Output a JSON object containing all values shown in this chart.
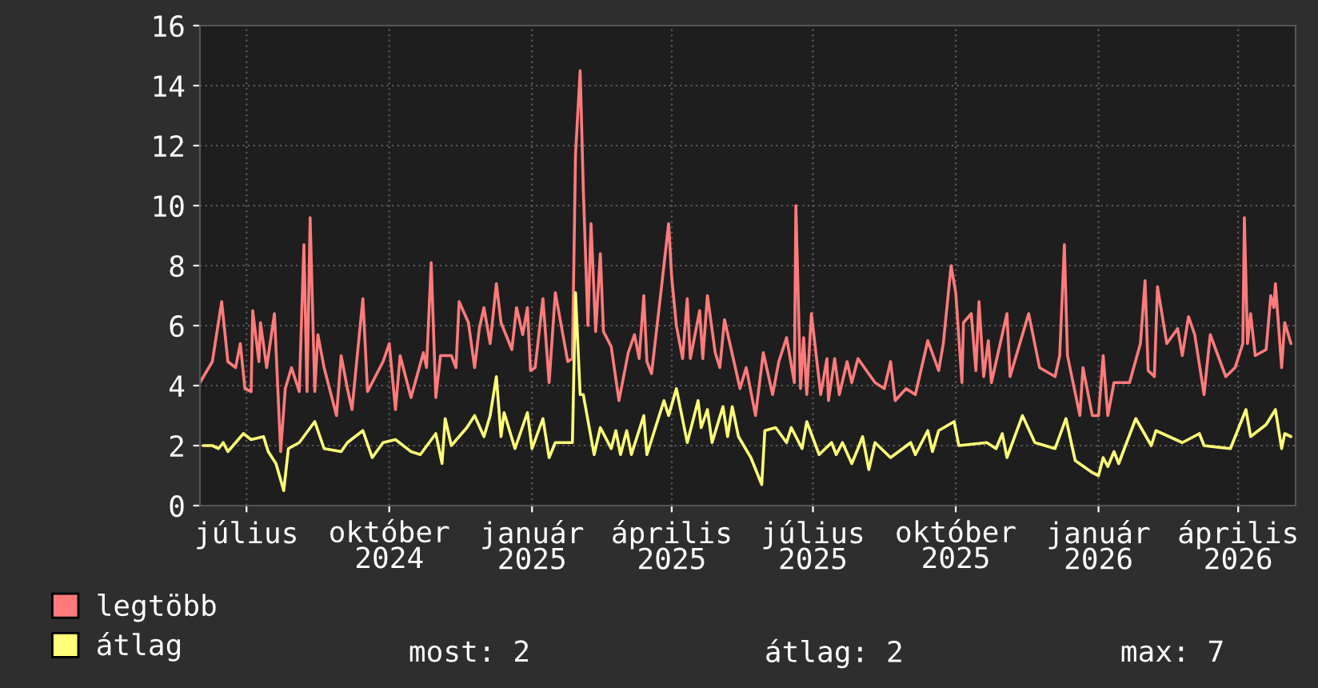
{
  "chart_data": {
    "type": "line",
    "xlim": [
      "2024-06-01",
      "2026-05-08"
    ],
    "xticks": [
      {
        "value": "2024-07-01",
        "label": "július"
      },
      {
        "value": "2024-10-01",
        "label": "október\n2024"
      },
      {
        "value": "2025-01-01",
        "label": "január\n2025"
      },
      {
        "value": "2025-04-01",
        "label": "április\n2025"
      },
      {
        "value": "2025-07-01",
        "label": "július\n2025"
      },
      {
        "value": "2025-10-01",
        "label": "október\n2025"
      },
      {
        "value": "2026-01-01",
        "label": "január\n2026"
      },
      {
        "value": "2026-04-01",
        "label": "április\n2026"
      }
    ],
    "ylim": [
      0,
      16
    ],
    "yticks": [
      0,
      2,
      4,
      6,
      8,
      10,
      12,
      14,
      16
    ],
    "grid": true,
    "legend": "bottom left",
    "annotations": [
      "most: 2",
      "átlag: 2",
      "max: 7"
    ],
    "series": [
      {
        "name": "legtöbb",
        "color": "#ff7b7b",
        "x": [
          "2024-06-01",
          "2024-06-09",
          "2024-06-15",
          "2024-06-19",
          "2024-06-24",
          "2024-06-27",
          "2024-06-30",
          "2024-07-04",
          "2024-07-05",
          "2024-07-09",
          "2024-07-10",
          "2024-07-14",
          "2024-07-19",
          "2024-07-23",
          "2024-07-26",
          "2024-07-30",
          "2024-08-04",
          "2024-08-07",
          "2024-08-09",
          "2024-08-11",
          "2024-08-14",
          "2024-08-16",
          "2024-08-20",
          "2024-08-28",
          "2024-08-31",
          "2024-09-04",
          "2024-09-07",
          "2024-09-10",
          "2024-09-14",
          "2024-09-17",
          "2024-09-27",
          "2024-10-01",
          "2024-10-05",
          "2024-10-08",
          "2024-10-15",
          "2024-10-23",
          "2024-10-25",
          "2024-10-28",
          "2024-10-31",
          "2024-11-03",
          "2024-11-10",
          "2024-11-13",
          "2024-11-15",
          "2024-11-21",
          "2024-11-25",
          "2024-11-28",
          "2024-12-01",
          "2024-12-05",
          "2024-12-09",
          "2024-12-12",
          "2024-12-19",
          "2024-12-22",
          "2024-12-26",
          "2024-12-29",
          "2024-12-31",
          "2025-01-03",
          "2025-01-08",
          "2025-01-12",
          "2025-01-16",
          "2025-01-24",
          "2025-01-27",
          "2025-01-29",
          "2025-02-01",
          "2025-02-03",
          "2025-02-06",
          "2025-02-08",
          "2025-02-11",
          "2025-02-14",
          "2025-02-16",
          "2025-02-21",
          "2025-02-26",
          "2025-03-04",
          "2025-03-08",
          "2025-03-11",
          "2025-03-14",
          "2025-03-16",
          "2025-03-19",
          "2025-03-25",
          "2025-03-30",
          "2025-04-01",
          "2025-04-04",
          "2025-04-08",
          "2025-04-11",
          "2025-04-13",
          "2025-04-19",
          "2025-04-21",
          "2025-04-24",
          "2025-04-29",
          "2025-05-02",
          "2025-05-05",
          "2025-05-15",
          "2025-05-19",
          "2025-05-25",
          "2025-05-30",
          "2025-06-05",
          "2025-06-09",
          "2025-06-14",
          "2025-06-19",
          "2025-06-20",
          "2025-06-23",
          "2025-06-25",
          "2025-06-27",
          "2025-06-30",
          "2025-07-06",
          "2025-07-10",
          "2025-07-11",
          "2025-07-15",
          "2025-07-18",
          "2025-07-23",
          "2025-07-26",
          "2025-07-30",
          "2025-08-10",
          "2025-08-16",
          "2025-08-20",
          "2025-08-23",
          "2025-08-30",
          "2025-09-05",
          "2025-09-13",
          "2025-09-20",
          "2025-09-23",
          "2025-09-28",
          "2025-10-01",
          "2025-10-05",
          "2025-10-06",
          "2025-10-11",
          "2025-10-14",
          "2025-10-16",
          "2025-10-19",
          "2025-10-22",
          "2025-10-24",
          "2025-11-03",
          "2025-11-05",
          "2025-11-17",
          "2025-11-24",
          "2025-12-04",
          "2025-12-07",
          "2025-12-10",
          "2025-12-12",
          "2025-12-20",
          "2025-12-22",
          "2025-12-28",
          "2026-01-01",
          "2026-01-04",
          "2026-01-07",
          "2026-01-11",
          "2026-01-21",
          "2026-01-28",
          "2026-01-31",
          "2026-02-02",
          "2026-02-06",
          "2026-02-08",
          "2026-02-14",
          "2026-02-21",
          "2026-02-24",
          "2026-02-28",
          "2026-03-04",
          "2026-03-10",
          "2026-03-14",
          "2026-03-24",
          "2026-03-30",
          "2026-04-04",
          "2026-04-05",
          "2026-04-07",
          "2026-04-09",
          "2026-04-12",
          "2026-04-19",
          "2026-04-22",
          "2026-04-24",
          "2026-04-25",
          "2026-04-29",
          "2026-05-01",
          "2026-05-05"
        ],
        "values": [
          4.1,
          4.8,
          6.8,
          4.8,
          4.6,
          5.4,
          3.9,
          3.8,
          6.5,
          4.8,
          6.1,
          4.6,
          6.4,
          1.8,
          3.9,
          4.6,
          3.8,
          8.7,
          3.8,
          9.6,
          3.8,
          5.7,
          4.6,
          3.0,
          5.0,
          3.9,
          3.2,
          4.8,
          6.9,
          3.8,
          4.8,
          5.4,
          3.2,
          5.0,
          3.6,
          5.1,
          4.6,
          8.1,
          3.6,
          5.0,
          5.0,
          4.6,
          6.8,
          6.1,
          4.6,
          5.9,
          6.6,
          5.4,
          7.4,
          6.1,
          5.2,
          6.6,
          5.7,
          6.6,
          4.5,
          4.6,
          6.9,
          4.1,
          7.1,
          4.8,
          4.9,
          11.7,
          14.5,
          10.6,
          6.0,
          9.4,
          5.8,
          8.4,
          5.8,
          5.3,
          3.5,
          5.1,
          5.7,
          4.9,
          7.0,
          4.8,
          4.4,
          7.1,
          9.4,
          7.6,
          6.0,
          4.9,
          6.9,
          4.9,
          6.5,
          4.9,
          7.0,
          5.1,
          4.6,
          6.2,
          3.9,
          4.6,
          3.0,
          5.1,
          3.7,
          4.8,
          5.6,
          4.1,
          10.0,
          3.9,
          5.6,
          3.7,
          6.4,
          3.7,
          4.9,
          3.5,
          4.9,
          3.7,
          4.8,
          4.1,
          4.9,
          4.1,
          3.9,
          4.8,
          3.5,
          3.9,
          3.7,
          5.5,
          4.5,
          5.4,
          8.0,
          7.1,
          4.1,
          6.1,
          6.4,
          4.5,
          6.8,
          4.3,
          5.5,
          4.1,
          6.4,
          4.3,
          6.4,
          4.6,
          4.3,
          5.0,
          8.7,
          5.0,
          3.0,
          4.6,
          3.0,
          3.0,
          5.0,
          3.0,
          4.1,
          4.1,
          5.4,
          7.5,
          4.5,
          4.3,
          7.3,
          5.4,
          5.9,
          5.0,
          6.3,
          5.7,
          3.7,
          5.7,
          4.3,
          4.6,
          5.4,
          9.6,
          5.4,
          6.4,
          5.0,
          5.2,
          7.0,
          6.6,
          7.4,
          4.6,
          6.1,
          5.4
        ]
      },
      {
        "name": "átlag",
        "color": "#ffff77",
        "x": [
          "2024-06-03",
          "2024-06-09",
          "2024-06-13",
          "2024-06-16",
          "2024-06-19",
          "2024-06-29",
          "2024-07-04",
          "2024-07-12",
          "2024-07-15",
          "2024-07-20",
          "2024-07-25",
          "2024-07-28",
          "2024-08-04",
          "2024-08-14",
          "2024-08-20",
          "2024-08-31",
          "2024-09-04",
          "2024-09-14",
          "2024-09-20",
          "2024-09-27",
          "2024-10-05",
          "2024-10-15",
          "2024-10-21",
          "2024-10-31",
          "2024-11-04",
          "2024-11-06",
          "2024-11-10",
          "2024-11-20",
          "2024-11-25",
          "2024-12-01",
          "2024-12-05",
          "2024-12-09",
          "2024-12-12",
          "2024-12-14",
          "2024-12-21",
          "2024-12-29",
          "2025-01-01",
          "2025-01-08",
          "2025-01-12",
          "2025-01-16",
          "2025-01-27",
          "2025-01-29",
          "2025-02-01",
          "2025-02-03",
          "2025-02-10",
          "2025-02-14",
          "2025-02-21",
          "2025-02-24",
          "2025-02-27",
          "2025-03-03",
          "2025-03-06",
          "2025-03-14",
          "2025-03-16",
          "2025-03-27",
          "2025-03-30",
          "2025-04-04",
          "2025-04-11",
          "2025-04-18",
          "2025-04-20",
          "2025-04-24",
          "2025-04-27",
          "2025-05-04",
          "2025-05-07",
          "2025-05-10",
          "2025-05-14",
          "2025-05-22",
          "2025-05-29",
          "2025-05-31",
          "2025-06-07",
          "2025-06-14",
          "2025-06-17",
          "2025-06-24",
          "2025-06-27",
          "2025-07-05",
          "2025-07-13",
          "2025-07-16",
          "2025-07-20",
          "2025-07-26",
          "2025-07-30",
          "2025-08-02",
          "2025-08-06",
          "2025-08-10",
          "2025-08-20",
          "2025-09-02",
          "2025-09-05",
          "2025-09-13",
          "2025-09-16",
          "2025-09-20",
          "2025-09-30",
          "2025-10-03",
          "2025-10-21",
          "2025-10-27",
          "2025-10-31",
          "2025-11-03",
          "2025-11-13",
          "2025-11-21",
          "2025-12-04",
          "2025-12-11",
          "2025-12-17",
          "2025-12-28",
          "2026-01-01",
          "2026-01-04",
          "2026-01-07",
          "2026-01-11",
          "2026-01-14",
          "2026-01-25",
          "2026-02-04",
          "2026-02-07",
          "2026-02-24",
          "2026-03-07",
          "2026-03-10",
          "2026-03-27",
          "2026-04-06",
          "2026-04-09",
          "2026-04-19",
          "2026-04-25",
          "2026-04-29",
          "2026-05-01",
          "2026-05-05"
        ],
        "values": [
          2.0,
          2.0,
          1.9,
          2.1,
          1.8,
          2.4,
          2.2,
          2.3,
          1.8,
          1.4,
          0.5,
          1.9,
          2.1,
          2.8,
          1.9,
          1.8,
          2.1,
          2.5,
          1.6,
          2.1,
          2.2,
          1.8,
          1.7,
          2.4,
          1.4,
          2.9,
          2.0,
          2.6,
          3.0,
          2.3,
          3.0,
          4.3,
          2.3,
          3.1,
          1.9,
          3.1,
          1.9,
          2.9,
          1.6,
          2.1,
          2.1,
          7.1,
          3.7,
          3.7,
          1.7,
          2.6,
          1.9,
          2.5,
          1.7,
          2.5,
          1.7,
          3.0,
          1.7,
          3.5,
          3.0,
          3.9,
          2.1,
          3.5,
          2.6,
          3.2,
          2.1,
          3.3,
          2.3,
          3.3,
          2.3,
          1.6,
          0.7,
          2.5,
          2.6,
          2.1,
          2.6,
          1.9,
          2.8,
          1.7,
          2.1,
          1.7,
          2.1,
          1.4,
          1.9,
          2.3,
          1.2,
          2.1,
          1.6,
          2.1,
          1.7,
          2.5,
          1.8,
          2.5,
          2.8,
          2.0,
          2.1,
          1.9,
          2.4,
          1.6,
          3.0,
          2.1,
          1.9,
          2.9,
          1.5,
          1.1,
          1.0,
          1.6,
          1.3,
          1.8,
          1.4,
          2.9,
          2.0,
          2.5,
          2.1,
          2.4,
          2.0,
          1.9,
          3.2,
          2.3,
          2.7,
          3.2,
          1.9,
          2.4,
          2.3
        ]
      }
    ]
  }
}
